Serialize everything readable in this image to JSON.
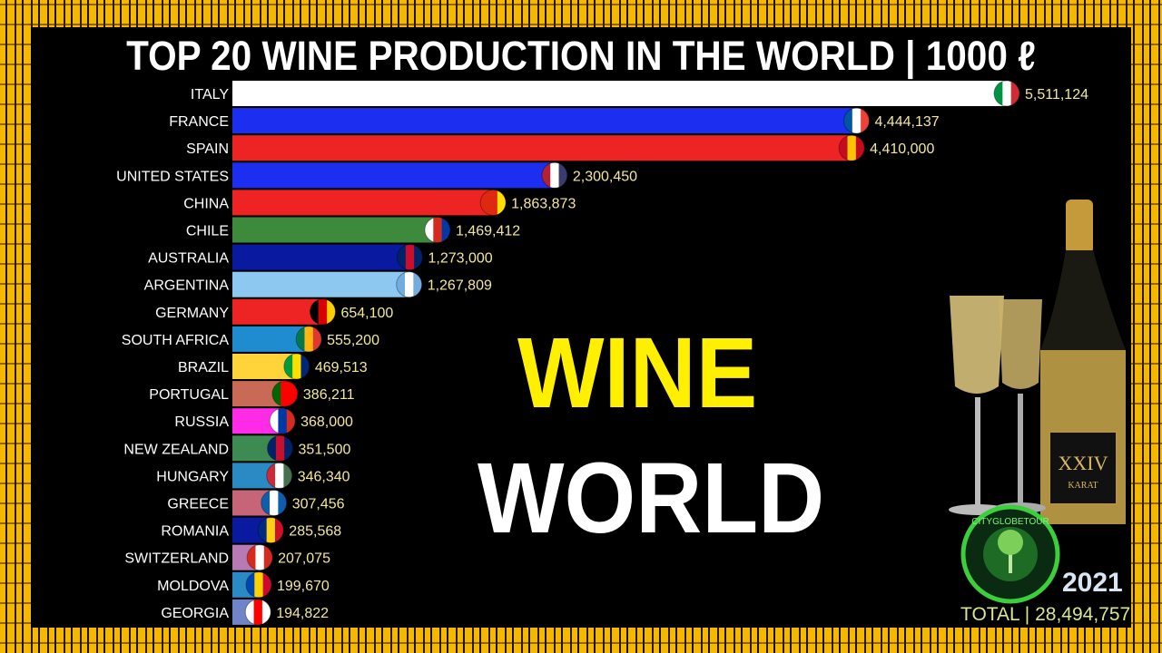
{
  "title": "TOP 20 WINE PRODUCTION IN THE WORLD | 1000 ℓ",
  "year": "2021",
  "total_label": "TOTAL | 28,494,757",
  "overlay": {
    "line1": "WINE",
    "line2": "WORLD"
  },
  "logo_text": "CITYGLOBETOUR",
  "chart_data": {
    "type": "bar",
    "orientation": "horizontal",
    "title": "TOP 20 WINE PRODUCTION IN THE WORLD | 1000 ℓ",
    "categories": [
      "ITALY",
      "FRANCE",
      "SPAIN",
      "UNITED STATES",
      "CHINA",
      "CHILE",
      "AUSTRALIA",
      "ARGENTINA",
      "GERMANY",
      "SOUTH AFRICA",
      "BRAZIL",
      "PORTUGAL",
      "RUSSIA",
      "NEW ZEALAND",
      "HUNGARY",
      "GREECE",
      "ROMANIA",
      "SWITZERLAND",
      "MOLDOVA",
      "GEORGIA"
    ],
    "values": [
      5511124,
      4444137,
      4410000,
      2300450,
      1863873,
      1469412,
      1273000,
      1267809,
      654100,
      555200,
      469513,
      386211,
      368000,
      351500,
      346340,
      307456,
      285568,
      207075,
      199670,
      194822
    ],
    "value_labels": [
      "5,511,124",
      "4,444,137",
      "4,410,000",
      "2,300,450",
      "1,863,873",
      "1,469,412",
      "1,273,000",
      "1,267,809",
      "654,100",
      "555,200",
      "469,513",
      "386,211",
      "368,000",
      "351,500",
      "346,340",
      "307,456",
      "285,568",
      "207,075",
      "199,670",
      "194,822"
    ],
    "bar_colors": [
      "#ffffff",
      "#1c2ef0",
      "#ee2424",
      "#1c2ef0",
      "#ee2424",
      "#3d8a3d",
      "#0a1aa0",
      "#8cc8f0",
      "#ee2424",
      "#1f8ccf",
      "#ffd43a",
      "#c96a57",
      "#ff2be6",
      "#3d8a52",
      "#2a8ac4",
      "#c66478",
      "#0a1aa0",
      "#b77ab5",
      "#2a8ac4",
      "#6f84c9"
    ],
    "flag_colors": [
      [
        "#009246",
        "#ffffff",
        "#ce2b37"
      ],
      [
        "#0055a4",
        "#ffffff",
        "#ef4135"
      ],
      [
        "#c60b1e",
        "#ffc400",
        "#c60b1e"
      ],
      [
        "#b22234",
        "#ffffff",
        "#3c3b6e"
      ],
      [
        "#de2910",
        "#de2910",
        "#ffde00"
      ],
      [
        "#ffffff",
        "#d52b1e",
        "#0039a6"
      ],
      [
        "#012169",
        "#c8102e",
        "#012169"
      ],
      [
        "#74acdf",
        "#ffffff",
        "#74acdf"
      ],
      [
        "#000000",
        "#dd0000",
        "#ffce00"
      ],
      [
        "#007a4d",
        "#ffb612",
        "#de3831"
      ],
      [
        "#009c3b",
        "#ffdf00",
        "#002776"
      ],
      [
        "#006600",
        "#ff0000",
        "#ff0000"
      ],
      [
        "#ffffff",
        "#0039a6",
        "#d52b1e"
      ],
      [
        "#012169",
        "#c8102e",
        "#012169"
      ],
      [
        "#ce2939",
        "#ffffff",
        "#477050"
      ],
      [
        "#0d5eaf",
        "#ffffff",
        "#0d5eaf"
      ],
      [
        "#002b7f",
        "#fcd116",
        "#ce1126"
      ],
      [
        "#d52b1e",
        "#ffffff",
        "#d52b1e"
      ],
      [
        "#0046ae",
        "#ffd200",
        "#cc092f"
      ],
      [
        "#ffffff",
        "#ff0000",
        "#ffffff"
      ]
    ],
    "xlim": [
      0,
      5511124
    ]
  }
}
